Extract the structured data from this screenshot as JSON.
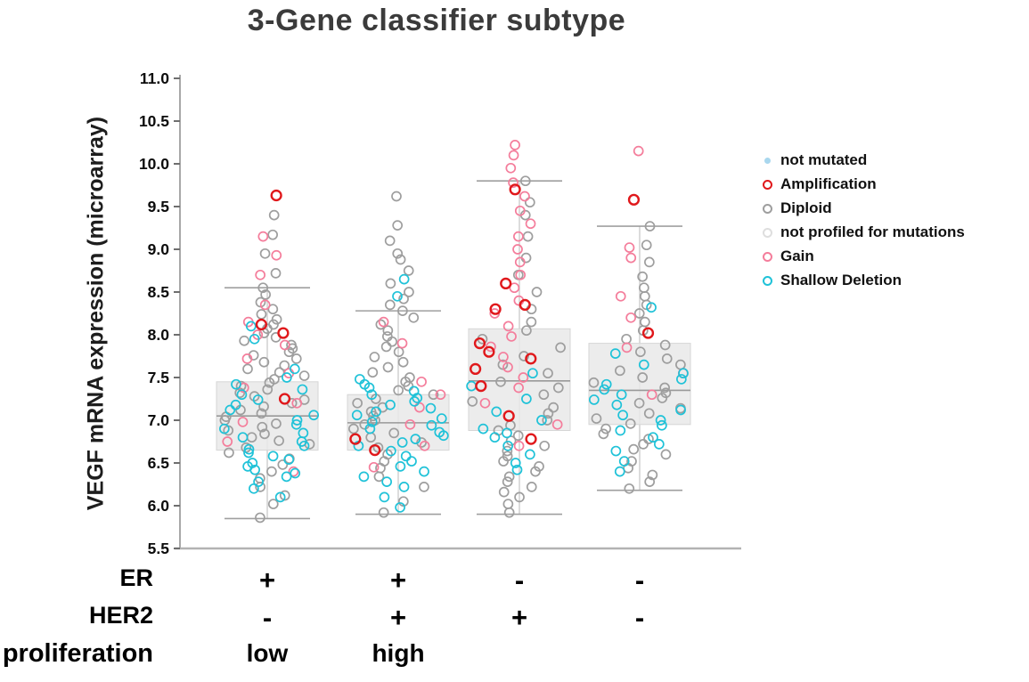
{
  "chart_data": {
    "type": "scatter",
    "title": "3-Gene classifier subtype",
    "ylabel": "VEGF mRNA expression (microarray)",
    "ylim": [
      5.5,
      11.0
    ],
    "ytick_step": 0.5,
    "grid": false,
    "legend_position": "right",
    "legend": [
      {
        "label": "not mutated",
        "color": "#a9d7ee",
        "style": "dot"
      },
      {
        "label": "Amplification",
        "color": "#e0181b",
        "style": "open-circle-bold"
      },
      {
        "label": "Diploid",
        "color": "#9e9e9e",
        "style": "open-circle"
      },
      {
        "label": "not profiled for mutations",
        "color": "#dedede",
        "style": "open-circle"
      },
      {
        "label": "Gain",
        "color": "#f47d9b",
        "style": "open-circle"
      },
      {
        "label": "Shallow Deletion",
        "color": "#1fc2d8",
        "style": "open-circle"
      }
    ],
    "series_colors": {
      "Diploid": "#9e9e9e",
      "Gain": "#f47d9b",
      "Shallow Deletion": "#1fc2d8",
      "Amplification": "#e0181b",
      "not profiled for mutations": "#dedede",
      "not mutated": "#a9d7ee"
    },
    "draw_order": [
      "Diploid",
      "Gain",
      "Shallow Deletion",
      "Amplification"
    ],
    "x_annotations": {
      "rows": [
        {
          "label": "ER",
          "values": [
            "+",
            "+",
            "-",
            "-"
          ]
        },
        {
          "label": "HER2",
          "values": [
            "-",
            "+",
            "+",
            "-"
          ]
        },
        {
          "label": "proliferation",
          "values": [
            "low",
            "high",
            "",
            ""
          ]
        }
      ]
    },
    "groups": [
      {
        "box": {
          "q1": 6.65,
          "median": 7.05,
          "q3": 7.45,
          "whisker_low": 5.85,
          "whisker_high": 8.55
        },
        "points": {
          "Diploid": [
            9.4,
            9.17,
            8.95,
            8.72,
            8.55,
            8.47,
            8.38,
            8.3,
            8.24,
            8.18,
            8.12,
            8.07,
            8.02,
            7.97,
            7.93,
            7.88,
            7.84,
            7.8,
            7.76,
            7.72,
            7.68,
            7.64,
            7.6,
            7.56,
            7.52,
            7.48,
            7.44,
            7.4,
            7.36,
            7.32,
            7.28,
            7.24,
            7.2,
            7.16,
            7.12,
            7.08,
            7.04,
            7.0,
            6.96,
            6.92,
            6.88,
            6.84,
            6.8,
            6.76,
            6.72,
            6.68,
            6.62,
            6.55,
            6.48,
            6.4,
            6.32,
            6.22,
            6.12,
            6.02,
            5.86
          ],
          "Gain": [
            9.15,
            8.93,
            8.7,
            8.35,
            8.15,
            8.0,
            7.88,
            7.72,
            7.55,
            7.38,
            7.2,
            6.98,
            6.75,
            6.4
          ],
          "Shallow Deletion": [
            8.1,
            7.95,
            7.6,
            7.5,
            7.42,
            7.36,
            7.3,
            7.24,
            7.18,
            7.12,
            7.06,
            7.0,
            6.95,
            6.9,
            6.85,
            6.8,
            6.75,
            6.7,
            6.66,
            6.62,
            6.58,
            6.54,
            6.5,
            6.46,
            6.42,
            6.38,
            6.34,
            6.28,
            6.2,
            6.1
          ],
          "Amplification": [
            9.63,
            8.12,
            8.02,
            7.25
          ]
        }
      },
      {
        "box": {
          "q1": 6.65,
          "median": 6.97,
          "q3": 7.3,
          "whisker_low": 5.9,
          "whisker_high": 8.28
        },
        "points": {
          "Diploid": [
            9.62,
            9.28,
            9.1,
            8.95,
            8.88,
            8.75,
            8.6,
            8.5,
            8.42,
            8.35,
            8.28,
            8.2,
            8.12,
            8.05,
            7.98,
            7.92,
            7.86,
            7.8,
            7.74,
            7.68,
            7.62,
            7.56,
            7.5,
            7.45,
            7.4,
            7.35,
            7.3,
            7.25,
            7.2,
            7.15,
            7.1,
            7.05,
            7.0,
            6.95,
            6.9,
            6.85,
            6.8,
            6.74,
            6.68,
            6.6,
            6.52,
            6.44,
            6.34,
            6.22,
            6.05,
            5.92
          ],
          "Gain": [
            8.15,
            7.9,
            7.45,
            7.3,
            7.15,
            6.95,
            6.7,
            6.45
          ],
          "Shallow Deletion": [
            8.65,
            8.45,
            7.48,
            7.42,
            7.38,
            7.34,
            7.3,
            7.26,
            7.22,
            7.18,
            7.14,
            7.1,
            7.06,
            7.02,
            6.98,
            6.94,
            6.9,
            6.86,
            6.82,
            6.78,
            6.74,
            6.7,
            6.64,
            6.58,
            6.52,
            6.46,
            6.4,
            6.34,
            6.28,
            6.22,
            6.1,
            5.98
          ],
          "Amplification": [
            6.78,
            6.65
          ]
        }
      },
      {
        "box": {
          "q1": 6.88,
          "median": 7.46,
          "q3": 8.07,
          "whisker_low": 5.9,
          "whisker_high": 9.8
        },
        "points": {
          "Diploid": [
            9.8,
            9.55,
            9.4,
            9.15,
            8.9,
            8.7,
            8.5,
            8.3,
            8.15,
            8.05,
            7.95,
            7.85,
            7.75,
            7.65,
            7.55,
            7.45,
            7.38,
            7.3,
            7.22,
            7.15,
            7.08,
            7.0,
            6.94,
            6.88,
            6.82,
            6.76,
            6.7,
            6.64,
            6.58,
            6.52,
            6.46,
            6.4,
            6.34,
            6.28,
            6.22,
            6.16,
            6.1,
            6.02,
            5.92
          ],
          "Gain": [
            10.22,
            10.1,
            9.95,
            9.78,
            9.62,
            9.45,
            9.3,
            9.15,
            9.0,
            8.85,
            8.7,
            8.55,
            8.4,
            8.25,
            8.1,
            7.98,
            7.86,
            7.74,
            7.62,
            7.5,
            7.38,
            7.2,
            6.95,
            6.7
          ],
          "Shallow Deletion": [
            7.55,
            7.4,
            7.25,
            7.1,
            7.0,
            6.9,
            6.85,
            6.8,
            6.7,
            6.6,
            6.5,
            6.42
          ],
          "Amplification": [
            9.7,
            8.6,
            8.35,
            8.3,
            7.9,
            7.8,
            7.72,
            7.6,
            7.4,
            7.05,
            6.78
          ]
        }
      },
      {
        "box": {
          "q1": 6.95,
          "median": 7.35,
          "q3": 7.9,
          "whisker_low": 6.18,
          "whisker_high": 9.27
        },
        "points": {
          "Diploid": [
            9.27,
            9.05,
            8.85,
            8.68,
            8.55,
            8.45,
            8.35,
            8.25,
            8.15,
            8.05,
            7.95,
            7.88,
            7.8,
            7.72,
            7.65,
            7.58,
            7.5,
            7.44,
            7.38,
            7.32,
            7.26,
            7.2,
            7.14,
            7.08,
            7.02,
            6.96,
            6.9,
            6.84,
            6.78,
            6.72,
            6.66,
            6.6,
            6.52,
            6.44,
            6.36,
            6.28,
            6.2
          ],
          "Gain": [
            10.15,
            9.02,
            8.9,
            8.45,
            8.2,
            7.85,
            7.55,
            7.3
          ],
          "Shallow Deletion": [
            8.32,
            7.78,
            7.65,
            7.55,
            7.48,
            7.42,
            7.36,
            7.3,
            7.24,
            7.18,
            7.12,
            7.06,
            7.0,
            6.94,
            6.88,
            6.8,
            6.72,
            6.64,
            6.52,
            6.4
          ],
          "Amplification": [
            9.58,
            8.02
          ]
        }
      }
    ]
  }
}
